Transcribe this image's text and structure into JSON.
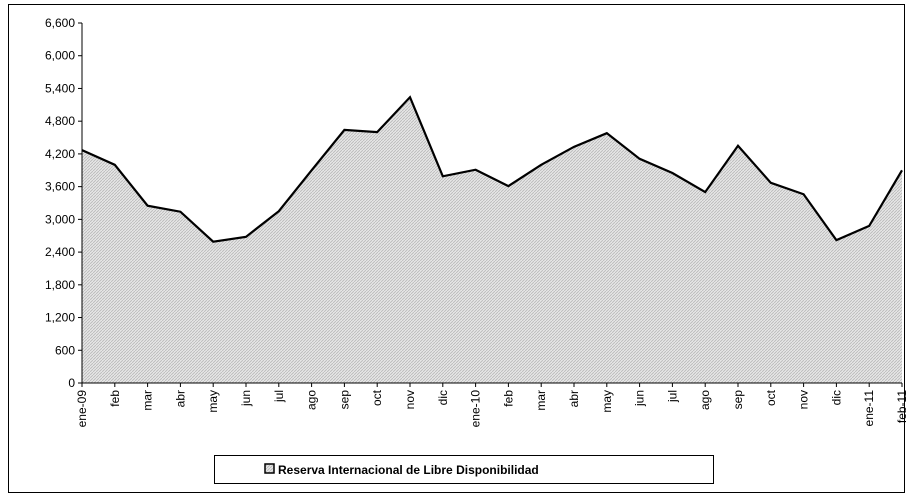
{
  "chart_data": {
    "type": "area",
    "categories": [
      "ene-09",
      "feb",
      "mar",
      "abr",
      "may",
      "jun",
      "jul",
      "ago",
      "sep",
      "oct",
      "nov",
      "dic",
      "ene-10",
      "feb",
      "mar",
      "abr",
      "may",
      "jun",
      "jul",
      "ago",
      "sep",
      "oct",
      "nov",
      "dic",
      "ene-11",
      "feb-11"
    ],
    "series": [
      {
        "name": "Reserva Internacional de Libre Disponibilidad",
        "color": "#000000",
        "fill": "#d4d4d4",
        "values": [
          4270,
          4000,
          3250,
          3140,
          2590,
          2680,
          3150,
          3900,
          4640,
          4600,
          5240,
          3790,
          3910,
          3610,
          4000,
          4330,
          4580,
          4110,
          3850,
          3500,
          4350,
          3670,
          3460,
          2620,
          2880,
          3900
        ]
      }
    ],
    "ylim": [
      0,
      6600
    ],
    "yticks": [
      0,
      600,
      {
        "value": 1200,
        "label": "1,200"
      },
      {
        "value": 1800,
        "label": "1,800"
      },
      {
        "value": 2400,
        "label": "2,400"
      },
      {
        "value": 3000,
        "label": "3,000"
      },
      {
        "value": 3600,
        "label": "3,600"
      },
      {
        "value": 4200,
        "label": "4,200"
      },
      {
        "value": 4800,
        "label": "4,800"
      },
      {
        "value": 5400,
        "label": "5,400"
      },
      {
        "value": 6000,
        "label": "6,000"
      },
      {
        "value": 6600,
        "label": "6,600"
      }
    ],
    "legend": "bottom"
  }
}
